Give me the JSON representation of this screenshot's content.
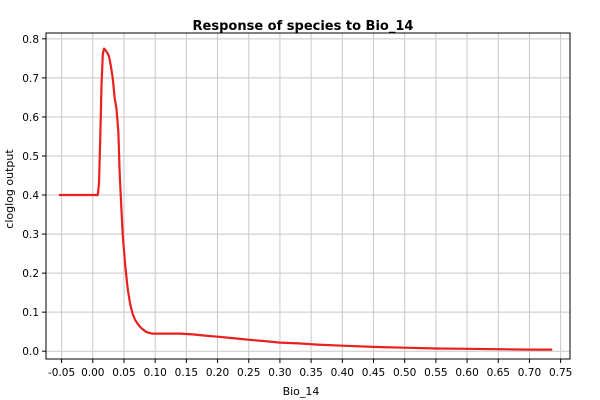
{
  "chart_data": {
    "type": "line",
    "title": "Response of species to Bio_14",
    "xlabel": "Bio_14",
    "ylabel": "cloglog output",
    "xlim": [
      -0.075,
      0.765
    ],
    "ylim": [
      -0.02,
      0.815
    ],
    "grid": true,
    "x_ticks": [
      -0.05,
      0.0,
      0.05,
      0.1,
      0.15,
      0.2,
      0.25,
      0.3,
      0.35,
      0.4,
      0.45,
      0.5,
      0.55,
      0.6,
      0.65,
      0.7,
      0.75
    ],
    "x_tick_labels": [
      "-0.05",
      "0.00",
      "0.05",
      "0.10",
      "0.15",
      "0.20",
      "0.25",
      "0.30",
      "0.35",
      "0.40",
      "0.45",
      "0.50",
      "0.55",
      "0.60",
      "0.65",
      "0.70",
      "0.75"
    ],
    "y_ticks": [
      0.0,
      0.1,
      0.2,
      0.3,
      0.4,
      0.5,
      0.6,
      0.7,
      0.8
    ],
    "y_tick_labels": [
      "0.0",
      "0.1",
      "0.2",
      "0.3",
      "0.4",
      "0.5",
      "0.6",
      "0.7",
      "0.8"
    ],
    "series": [
      {
        "color": "#e8201e",
        "x": [
          -0.053,
          0.0,
          0.008,
          0.01,
          0.012,
          0.014,
          0.016,
          0.018,
          0.02,
          0.023,
          0.026,
          0.029,
          0.032,
          0.035,
          0.038,
          0.041,
          0.043,
          0.045,
          0.048,
          0.052,
          0.056,
          0.06,
          0.064,
          0.068,
          0.072,
          0.076,
          0.08,
          0.085,
          0.09,
          0.095,
          0.1,
          0.12,
          0.14,
          0.16,
          0.18,
          0.2,
          0.22,
          0.24,
          0.26,
          0.28,
          0.3,
          0.33,
          0.36,
          0.4,
          0.45,
          0.5,
          0.55,
          0.6,
          0.65,
          0.7,
          0.735
        ],
        "y": [
          0.4,
          0.4,
          0.4,
          0.43,
          0.55,
          0.68,
          0.76,
          0.775,
          0.772,
          0.765,
          0.755,
          0.73,
          0.7,
          0.65,
          0.62,
          0.56,
          0.46,
          0.39,
          0.3,
          0.22,
          0.16,
          0.12,
          0.095,
          0.08,
          0.07,
          0.062,
          0.056,
          0.05,
          0.047,
          0.045,
          0.045,
          0.045,
          0.045,
          0.043,
          0.04,
          0.037,
          0.034,
          0.031,
          0.028,
          0.025,
          0.022,
          0.02,
          0.017,
          0.014,
          0.011,
          0.009,
          0.007,
          0.006,
          0.005,
          0.004,
          0.004
        ]
      }
    ]
  }
}
